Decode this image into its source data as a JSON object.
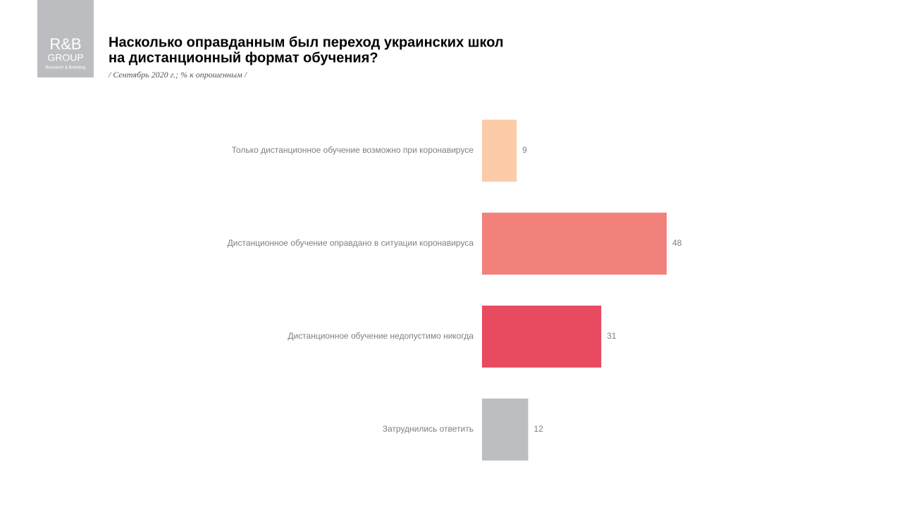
{
  "logo": {
    "mark": "R&B",
    "group": "GROUP",
    "tagline": "Research & Branding"
  },
  "chart_data": {
    "type": "barh",
    "title": [
      "Насколько оправданным был переход украинских школ",
      "на дистанционный формат обучения?"
    ],
    "subtitle": "/ Сентябрь 2020 г.; % к опрошенным /",
    "categories": [
      "Только дистанционное  обучение возможно при коронавирусе",
      "Дистанционное  обучение оправдано в ситуации коронавируса",
      "Дистанционное  обучение недопустимо никогда",
      "Затруднились  ответить"
    ],
    "values": [
      9,
      48,
      31,
      12
    ],
    "colors": [
      "#fccca8",
      "#f2817b",
      "#e84a5f",
      "#bdbec0"
    ]
  }
}
